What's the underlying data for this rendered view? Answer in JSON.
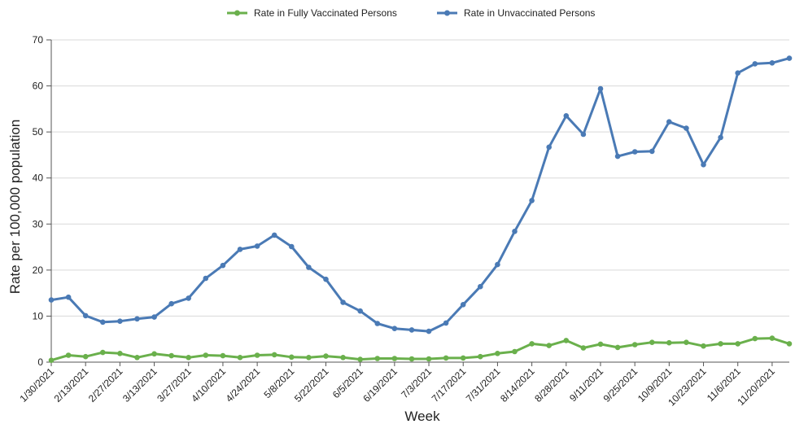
{
  "chart_data": {
    "type": "line",
    "title": "",
    "xlabel": "Week",
    "ylabel": "Rate per 100,000 population",
    "ylim": [
      0,
      70
    ],
    "yticks": [
      0,
      10,
      20,
      30,
      40,
      50,
      60,
      70
    ],
    "grid": "horizontal",
    "legend_position": "top-center",
    "x": [
      "1/30/2021",
      "2/6/2021",
      "2/13/2021",
      "2/20/2021",
      "2/27/2021",
      "3/6/2021",
      "3/13/2021",
      "3/20/2021",
      "3/27/2021",
      "4/3/2021",
      "4/10/2021",
      "4/17/2021",
      "4/24/2021",
      "5/1/2021",
      "5/8/2021",
      "5/15/2021",
      "5/22/2021",
      "5/29/2021",
      "6/5/2021",
      "6/12/2021",
      "6/19/2021",
      "6/26/2021",
      "7/3/2021",
      "7/10/2021",
      "7/17/2021",
      "7/24/2021",
      "7/31/2021",
      "8/7/2021",
      "8/14/2021",
      "8/21/2021",
      "8/28/2021",
      "9/4/2021",
      "9/11/2021",
      "9/18/2021",
      "9/25/2021",
      "10/2/2021",
      "10/9/2021",
      "10/16/2021",
      "10/23/2021",
      "10/30/2021",
      "11/6/2021",
      "11/13/2021",
      "11/20/2021",
      "11/27/2021"
    ],
    "x_tick_labels": [
      "1/30/2021",
      "2/13/2021",
      "2/27/2021",
      "3/13/2021",
      "3/27/2021",
      "4/10/2021",
      "4/24/2021",
      "5/8/2021",
      "5/22/2021",
      "6/5/2021",
      "6/19/2021",
      "7/3/2021",
      "7/17/2021",
      "7/31/2021",
      "8/14/2021",
      "8/28/2021",
      "9/11/2021",
      "9/25/2021",
      "10/9/2021",
      "10/23/2021",
      "11/6/2021",
      "11/20/2021"
    ],
    "series": [
      {
        "name": "Rate in Fully Vaccinated Persons",
        "color": "#6ab04c",
        "values": [
          0.4,
          1.5,
          1.2,
          2.1,
          1.9,
          1.0,
          1.8,
          1.4,
          1.0,
          1.5,
          1.4,
          1.0,
          1.5,
          1.6,
          1.1,
          1.0,
          1.3,
          1.0,
          0.6,
          0.8,
          0.8,
          0.7,
          0.7,
          0.9,
          0.9,
          1.2,
          1.9,
          2.3,
          4.0,
          3.6,
          4.7,
          3.1,
          3.9,
          3.2,
          3.8,
          4.3,
          4.2,
          4.3,
          3.5,
          4.0,
          4.0,
          5.1,
          5.2,
          4.0
        ]
      },
      {
        "name": "Rate in Unvaccinated Persons",
        "color": "#4a7ab5",
        "values": [
          13.5,
          14.1,
          10.1,
          8.7,
          8.9,
          9.4,
          9.8,
          12.7,
          13.9,
          18.2,
          21.0,
          24.5,
          25.2,
          27.6,
          25.1,
          20.6,
          18.0,
          13.0,
          11.1,
          8.4,
          7.3,
          7.0,
          6.7,
          8.5,
          12.5,
          16.4,
          21.2,
          28.4,
          35.1,
          46.7,
          53.5,
          49.5,
          59.4,
          44.7,
          45.7,
          45.8,
          52.2,
          50.8,
          42.9,
          48.8,
          62.8,
          64.8,
          65.0,
          66.0
        ]
      }
    ]
  }
}
